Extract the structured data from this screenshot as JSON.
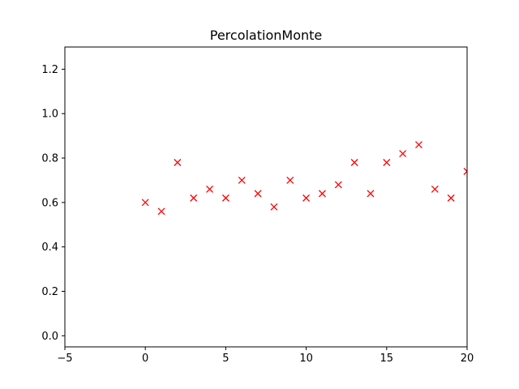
{
  "chart_data": {
    "type": "scatter",
    "title": "PercolationMonte",
    "xlabel": "",
    "ylabel": "",
    "xlim": [
      -5,
      20
    ],
    "ylim": [
      -0.05,
      1.3
    ],
    "x_ticks": [
      -5,
      0,
      5,
      10,
      15,
      20
    ],
    "y_ticks": [
      0.0,
      0.2,
      0.4,
      0.6,
      0.8,
      1.0,
      1.2
    ],
    "x_tick_labels": [
      "−5",
      "0",
      "5",
      "10",
      "15",
      "20"
    ],
    "y_tick_labels": [
      "0.0",
      "0.2",
      "0.4",
      "0.6",
      "0.8",
      "1.0",
      "1.2"
    ],
    "grid": false,
    "marker": "x",
    "series": [
      {
        "color": "#ff0000",
        "x": [
          0,
          1,
          2,
          3,
          4,
          5,
          6,
          7,
          8,
          9,
          10,
          11,
          12,
          13,
          14,
          15,
          16,
          17,
          18,
          19,
          20
        ],
        "y": [
          0.6,
          0.56,
          0.78,
          0.62,
          0.66,
          0.62,
          0.7,
          0.64,
          0.58,
          0.7,
          0.62,
          0.64,
          0.68,
          0.78,
          0.64,
          0.78,
          0.82,
          0.86,
          0.66,
          0.62,
          0.74
        ]
      }
    ]
  }
}
